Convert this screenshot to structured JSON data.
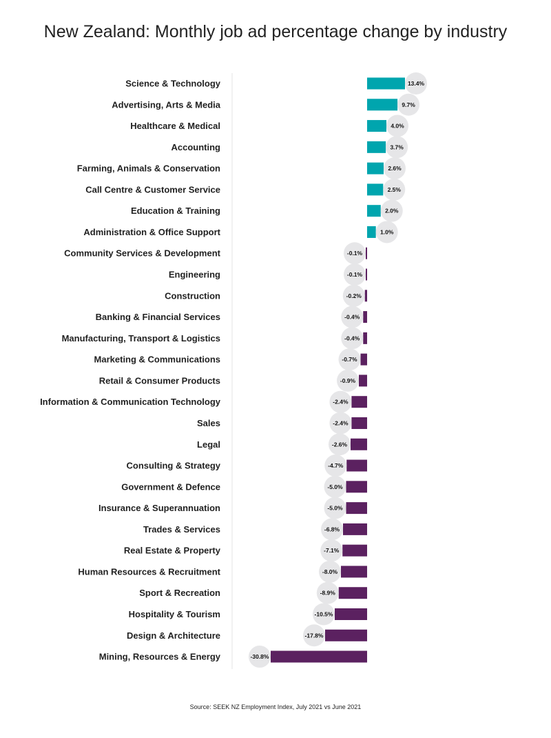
{
  "chart_data": {
    "type": "bar",
    "orientation": "horizontal",
    "title": "New Zealand: Monthly job ad percentage change by industry",
    "source": "Source: SEEK NZ Employment Index, July 2021 vs June 2021",
    "xlabel": "",
    "ylabel": "",
    "colors": {
      "positive": "#00A5AE",
      "negative": "#5B2160",
      "label_bubble": "#E6E6E8"
    },
    "categories": [
      "Science & Technology",
      "Advertising, Arts & Media",
      "Healthcare & Medical",
      "Accounting",
      "Farming, Animals & Conservation",
      "Call Centre & Customer Service",
      "Education & Training",
      "Administration & Office Support",
      "Community Services & Development",
      "Engineering",
      "Construction",
      "Banking & Financial Services",
      "Manufacturing, Transport & Logistics",
      "Marketing & Communications",
      "Retail & Consumer Products",
      "Information & Communication Technology",
      "Sales",
      "Legal",
      "Consulting & Strategy",
      "Government & Defence",
      "Insurance & Superannuation",
      "Trades & Services",
      "Real Estate & Property",
      "Human Resources & Recruitment",
      "Sport & Recreation",
      "Hospitality & Tourism",
      "Design & Architecture",
      "Mining, Resources & Energy"
    ],
    "values": [
      13.4,
      9.7,
      4.0,
      3.7,
      2.6,
      2.5,
      2.0,
      1.0,
      -0.1,
      -0.1,
      -0.2,
      -0.4,
      -0.4,
      -0.7,
      -0.9,
      -2.4,
      -2.4,
      -2.6,
      -4.7,
      -5.0,
      -5.0,
      -6.8,
      -7.1,
      -8.0,
      -8.9,
      -10.5,
      -17.8,
      -30.8
    ],
    "labels": [
      "13.4%",
      "9.7%",
      "4.0%",
      "3.7%",
      "2.6%",
      "2.5%",
      "2.0%",
      "1.0%",
      "-0.1%",
      "-0.1%",
      "-0.2%",
      "-0.4%",
      "-0.4%",
      "-0.7%",
      "-0.9%",
      "-2.4%",
      "-2.4%",
      "-2.6%",
      "-4.7%",
      "-5.0%",
      "-5.0%",
      "-6.8%",
      "-7.1%",
      "-8.0%",
      "-8.9%",
      "-10.5%",
      "-17.8%",
      "-30.8%"
    ],
    "unit": "%"
  }
}
